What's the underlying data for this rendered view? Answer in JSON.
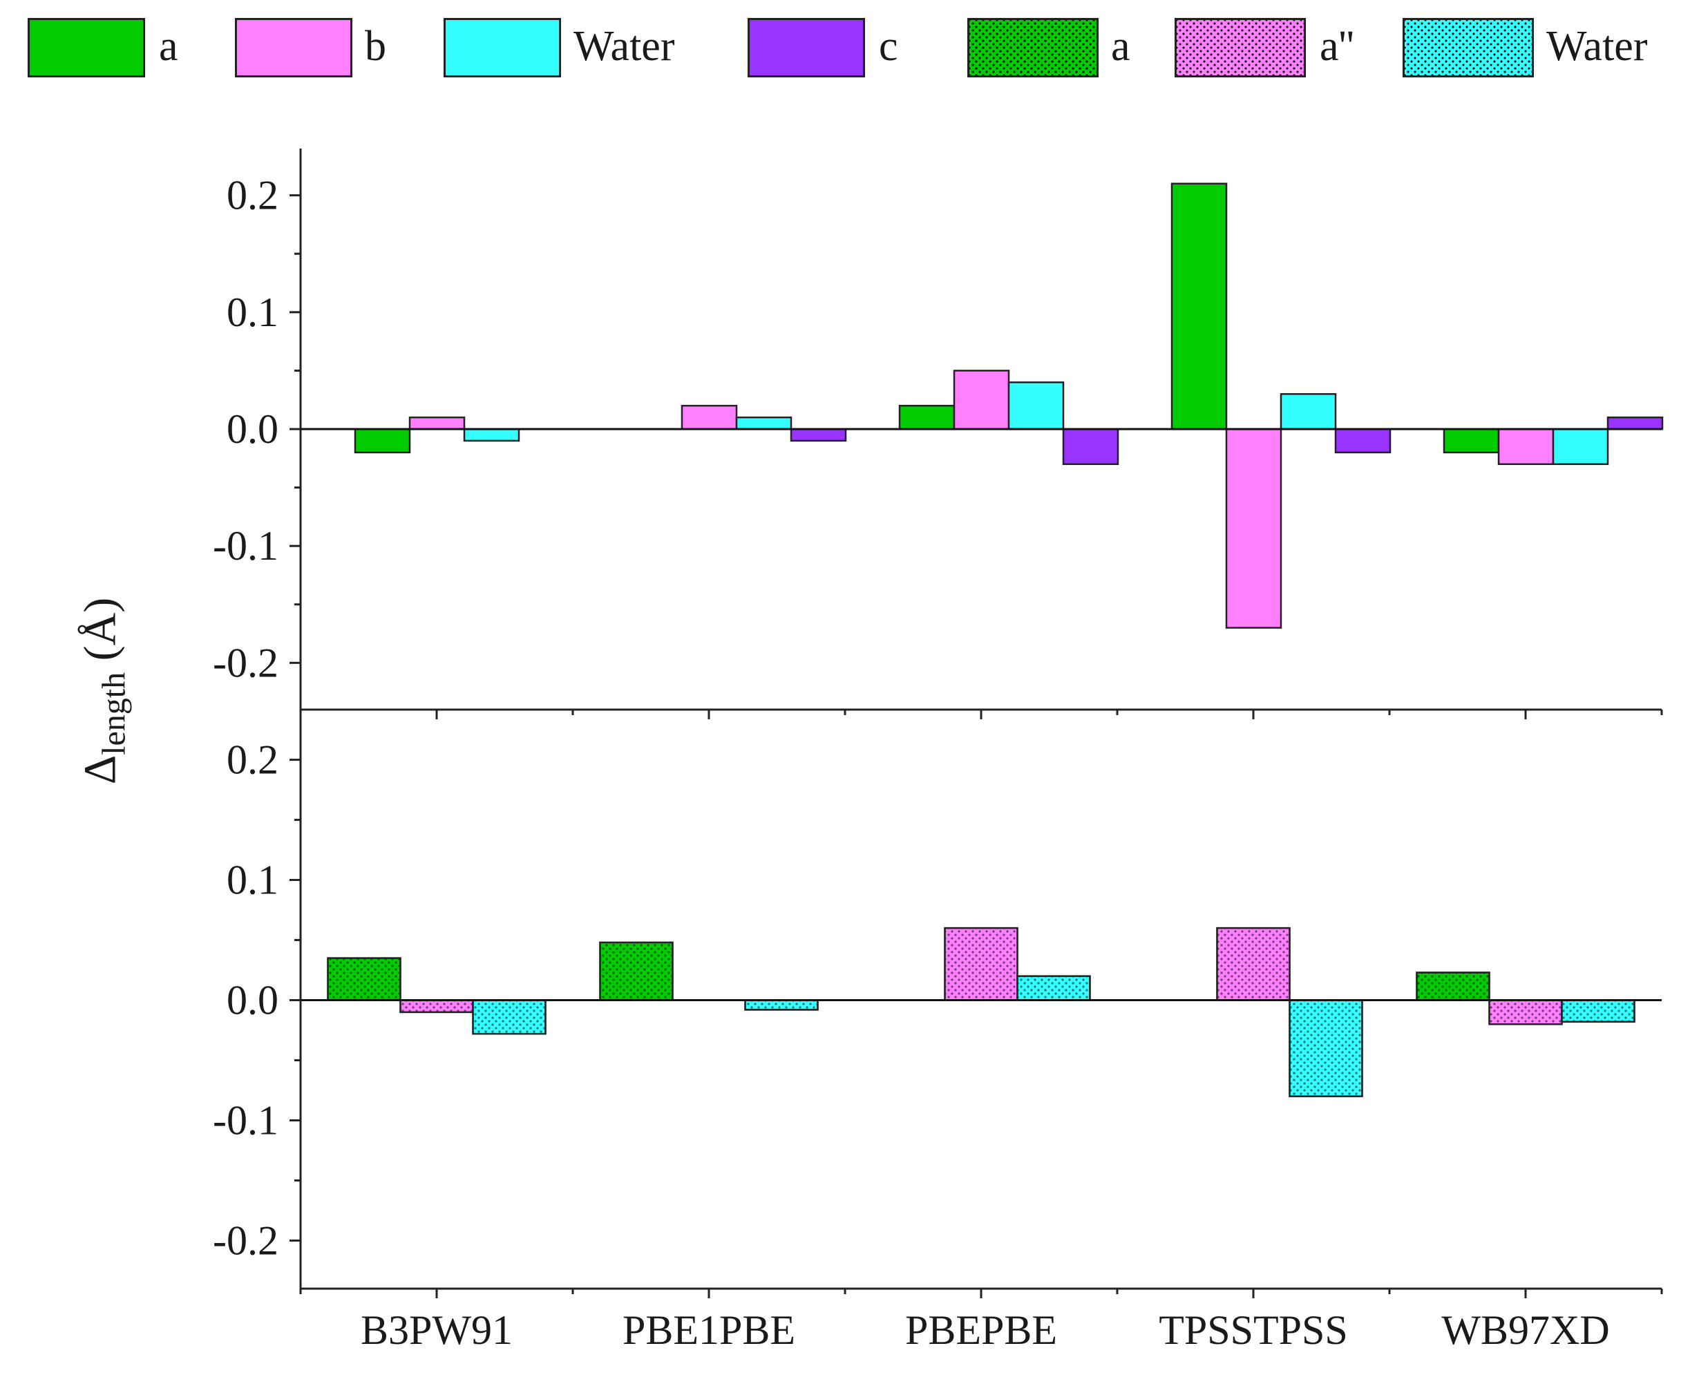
{
  "chart_data": [
    {
      "type": "bar",
      "panel": "top",
      "categories": [
        "B3PW91",
        "PBE1PBE",
        "PBEPBE",
        "TPSSTPSS",
        "WB97XD"
      ],
      "series": [
        {
          "name": "a",
          "color": "#00cc00",
          "pattern": "solid",
          "values": [
            -0.02,
            0.0,
            0.02,
            0.21,
            -0.02
          ]
        },
        {
          "name": "b",
          "color": "#ff80ff",
          "pattern": "solid",
          "values": [
            0.01,
            0.02,
            0.05,
            -0.17,
            -0.03
          ]
        },
        {
          "name": "Water",
          "color": "#33ffff",
          "pattern": "solid",
          "values": [
            -0.01,
            0.01,
            0.04,
            0.03,
            -0.03
          ]
        },
        {
          "name": "c",
          "color": "#9933ff",
          "pattern": "solid",
          "values": [
            0.0,
            -0.01,
            -0.03,
            -0.02,
            0.01
          ]
        }
      ],
      "ylim": [
        -0.24,
        0.24
      ],
      "yticks": [
        "0.2",
        "0.1",
        "0.0",
        "-0.1",
        "-0.2"
      ]
    },
    {
      "type": "bar",
      "panel": "bottom",
      "categories": [
        "B3PW91",
        "PBE1PBE",
        "PBEPBE",
        "TPSSTPSS",
        "WB97XD"
      ],
      "series": [
        {
          "name": "a",
          "color": "#00cc00",
          "pattern": "dotted",
          "values": [
            0.035,
            0.048,
            0.0,
            0.0,
            0.023
          ]
        },
        {
          "name": "a''",
          "color": "#ff80ff",
          "pattern": "dotted",
          "values": [
            -0.01,
            0.0,
            0.06,
            0.06,
            -0.02
          ]
        },
        {
          "name": "Water",
          "color": "#33ffff",
          "pattern": "dotted",
          "values": [
            -0.028,
            -0.008,
            0.02,
            -0.08,
            -0.018
          ]
        }
      ],
      "ylim": [
        -0.24,
        0.24
      ],
      "yticks": [
        "0.2",
        "0.1",
        "0.0",
        "-0.1",
        "-0.2"
      ]
    }
  ],
  "axis": {
    "ylabel_main": "Δ",
    "ylabel_sub": "length",
    "ylabel_unit": "(Å)"
  },
  "legend": [
    {
      "label": "a",
      "color": "#00cc00",
      "pattern": "solid"
    },
    {
      "label": "b",
      "color": "#ff80ff",
      "pattern": "solid"
    },
    {
      "label": "Water",
      "color": "#33ffff",
      "pattern": "solid"
    },
    {
      "label": "c",
      "color": "#9933ff",
      "pattern": "solid"
    },
    {
      "label": "a",
      "color": "#00cc00",
      "pattern": "dotted"
    },
    {
      "label": "a''",
      "color": "#ff80ff",
      "pattern": "dotted"
    },
    {
      "label": "Water",
      "color": "#33ffff",
      "pattern": "dotted"
    }
  ]
}
